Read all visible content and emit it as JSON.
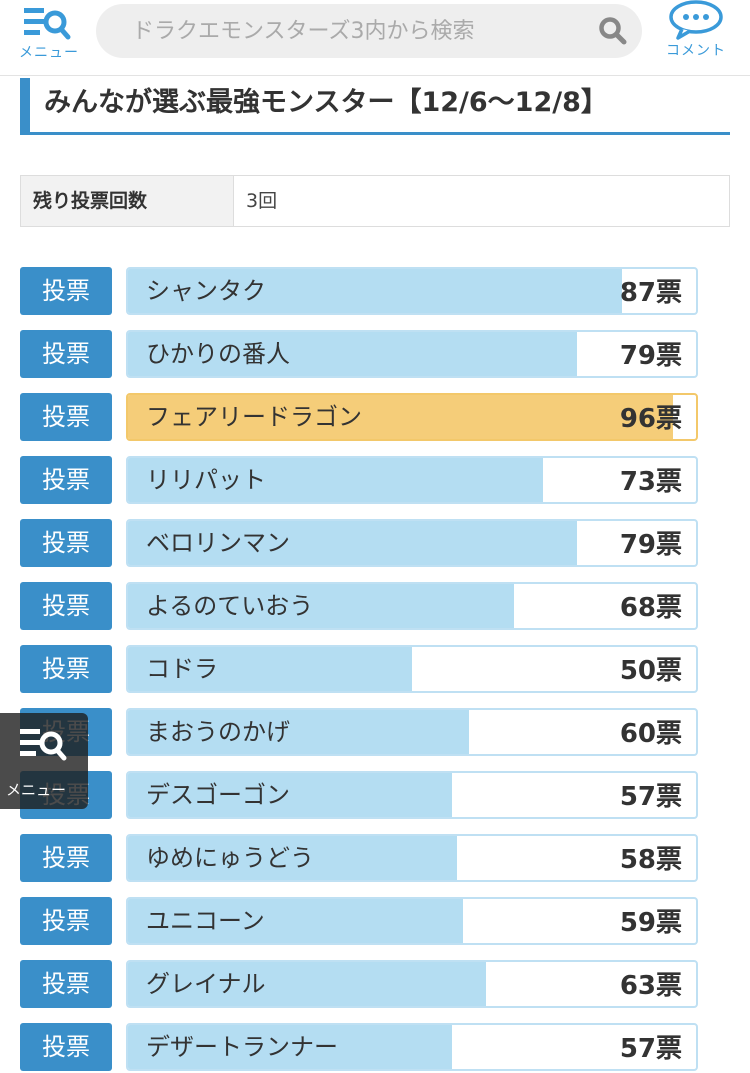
{
  "header": {
    "menu_label": "メニュー",
    "search_placeholder": "ドラクエモンスターズ3内から検索",
    "comment_label": "コメント"
  },
  "title": "みんなが選ぶ最強モンスター【12/6〜12/8】",
  "remaining": {
    "label": "残り投票回数",
    "value": "3回"
  },
  "vote_button_label": "投票",
  "max_votes": 100,
  "accent_color": "#3a8fc9",
  "bar_color": "#b4ddf2",
  "highlight_color": "#f5cd79",
  "entries": [
    {
      "name": "シャンタク",
      "votes": 87,
      "count_text": "87票"
    },
    {
      "name": "ひかりの番人",
      "votes": 79,
      "count_text": "79票"
    },
    {
      "name": "フェアリードラゴン",
      "votes": 96,
      "count_text": "96票",
      "highlight": true
    },
    {
      "name": "リリパット",
      "votes": 73,
      "count_text": "73票"
    },
    {
      "name": "ベロリンマン",
      "votes": 79,
      "count_text": "79票"
    },
    {
      "name": "よるのていおう",
      "votes": 68,
      "count_text": "68票"
    },
    {
      "name": "コドラ",
      "votes": 50,
      "count_text": "50票"
    },
    {
      "name": "まおうのかげ",
      "votes": 60,
      "count_text": "60票"
    },
    {
      "name": "デスゴーゴン",
      "votes": 57,
      "count_text": "57票"
    },
    {
      "name": "ゆめにゅうどう",
      "votes": 58,
      "count_text": "58票"
    },
    {
      "name": "ユニコーン",
      "votes": 59,
      "count_text": "59票"
    },
    {
      "name": "グレイナル",
      "votes": 63,
      "count_text": "63票"
    },
    {
      "name": "デザートランナー",
      "votes": 57,
      "count_text": "57票"
    }
  ],
  "floating_menu": {
    "label": "メニュー"
  }
}
